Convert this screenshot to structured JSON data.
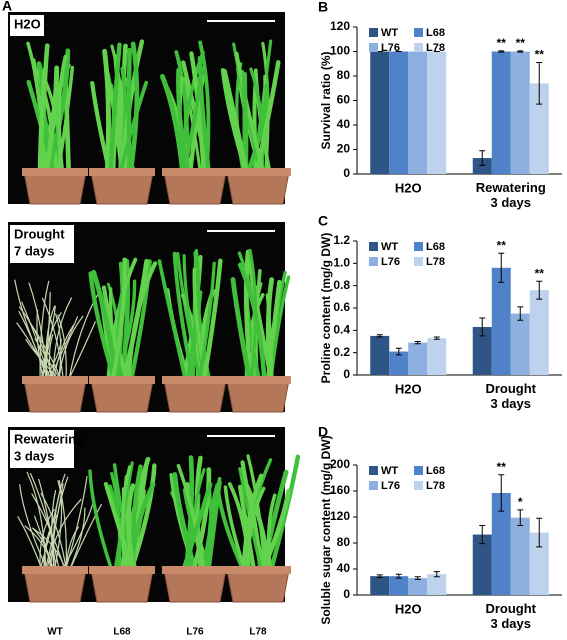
{
  "figure": {
    "panel_label": "A",
    "genotypes": [
      "WT",
      "L68",
      "L76",
      "L78"
    ],
    "photos": [
      {
        "label": [
          "H2O"
        ]
      },
      {
        "label": [
          "Drought",
          "7 days"
        ]
      },
      {
        "label": [
          "Rewatering",
          "3 days"
        ]
      }
    ]
  },
  "chart_data": [
    {
      "type": "bar",
      "panel": "B",
      "y_label": "Survival ratio (%)",
      "categories": [
        "H2O",
        "Rewatering\n3 days"
      ],
      "ylim": [
        0,
        120
      ],
      "yticks": [
        0,
        20,
        40,
        60,
        80,
        100,
        120
      ],
      "series": [
        {
          "name": "WT",
          "color": "#2f5486",
          "values": [
            100,
            13
          ],
          "errors": [
            0,
            6
          ],
          "significance": [
            null,
            null
          ]
        },
        {
          "name": "L68",
          "color": "#4f82c8",
          "values": [
            100,
            100
          ],
          "errors": [
            0,
            0.5
          ],
          "significance": [
            null,
            "**"
          ]
        },
        {
          "name": "L76",
          "color": "#8eb0e0",
          "values": [
            100,
            100
          ],
          "errors": [
            0,
            0.5
          ],
          "significance": [
            null,
            "**"
          ]
        },
        {
          "name": "L78",
          "color": "#bfd2ed",
          "values": [
            100,
            74
          ],
          "errors": [
            0,
            17
          ],
          "significance": [
            null,
            "**"
          ]
        }
      ]
    },
    {
      "type": "bar",
      "panel": "C",
      "y_label": "Proline content (mg/g DW)",
      "categories": [
        "H2O",
        "Drought\n3 days"
      ],
      "ylim": [
        0,
        1.2
      ],
      "yticks": [
        0,
        0.2,
        0.4,
        0.6,
        0.8,
        {
          "value": 1,
          "label": "1.0"
        },
        1.2
      ],
      "series": [
        {
          "name": "WT",
          "color": "#2f5486",
          "values": [
            0.35,
            0.43
          ],
          "errors": [
            0.01,
            0.08
          ],
          "significance": [
            null,
            null
          ]
        },
        {
          "name": "L68",
          "color": "#4f82c8",
          "values": [
            0.21,
            0.96
          ],
          "errors": [
            0.03,
            0.13
          ],
          "significance": [
            null,
            "**"
          ]
        },
        {
          "name": "L76",
          "color": "#8eb0e0",
          "values": [
            0.29,
            0.55
          ],
          "errors": [
            0.01,
            0.06
          ],
          "significance": [
            null,
            null
          ]
        },
        {
          "name": "L78",
          "color": "#bfd2ed",
          "values": [
            0.33,
            0.76
          ],
          "errors": [
            0.01,
            0.08
          ],
          "significance": [
            null,
            "**"
          ]
        }
      ]
    },
    {
      "type": "bar",
      "panel": "D",
      "y_label": "Soluble sugar content (mg/g DW)",
      "categories": [
        "H2O",
        "Drought\n3 days"
      ],
      "ylim": [
        0,
        200
      ],
      "yticks": [
        0,
        40,
        80,
        120,
        160,
        200
      ],
      "series": [
        {
          "name": "WT",
          "color": "#2f5486",
          "values": [
            29,
            93
          ],
          "errors": [
            2,
            14
          ],
          "significance": [
            null,
            null
          ]
        },
        {
          "name": "L68",
          "color": "#4f82c8",
          "values": [
            29,
            157
          ],
          "errors": [
            3,
            28
          ],
          "significance": [
            null,
            "**"
          ]
        },
        {
          "name": "L76",
          "color": "#8eb0e0",
          "values": [
            26,
            119
          ],
          "errors": [
            2,
            12
          ],
          "significance": [
            null,
            "*"
          ]
        },
        {
          "name": "L78",
          "color": "#bfd2ed",
          "values": [
            32,
            96
          ],
          "errors": [
            4,
            22
          ],
          "significance": [
            null,
            null
          ]
        }
      ]
    }
  ]
}
